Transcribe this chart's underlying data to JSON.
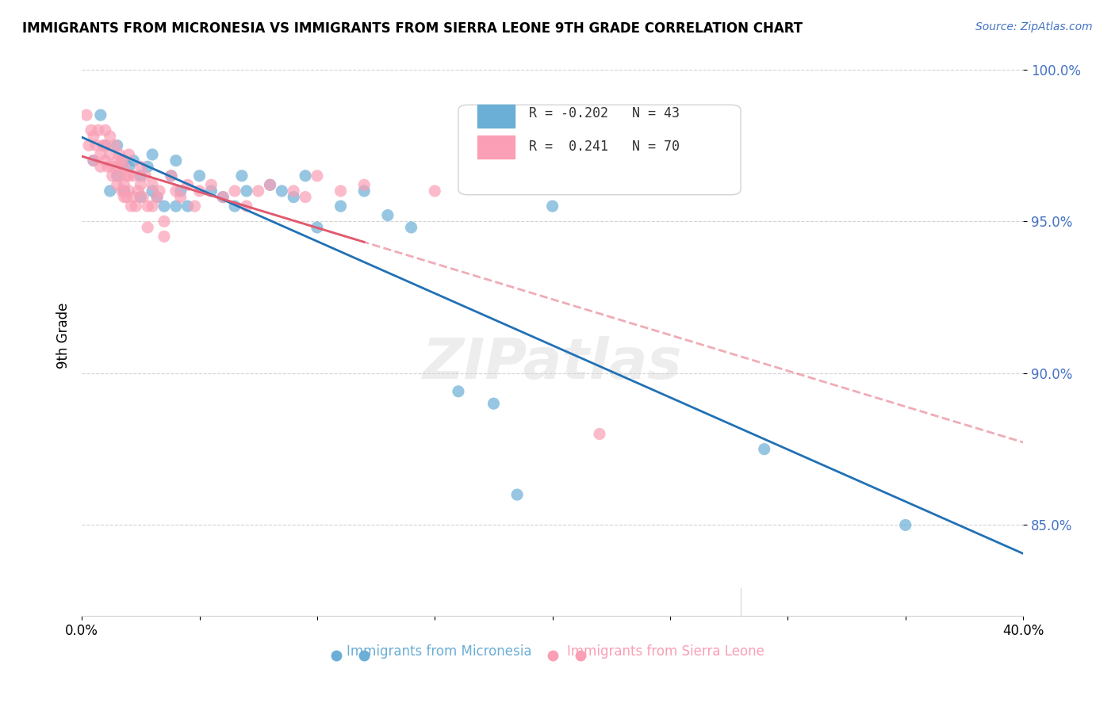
{
  "title": "IMMIGRANTS FROM MICRONESIA VS IMMIGRANTS FROM SIERRA LEONE 9TH GRADE CORRELATION CHART",
  "source": "Source: ZipAtlas.com",
  "xlabel_legend1": "Immigrants from Micronesia",
  "xlabel_legend2": "Immigrants from Sierra Leone",
  "ylabel": "9th Grade",
  "R_blue": -0.202,
  "N_blue": 43,
  "R_pink": 0.241,
  "N_pink": 70,
  "xlim": [
    0.0,
    0.4
  ],
  "ylim": [
    0.82,
    1.005
  ],
  "yticks": [
    0.85,
    0.9,
    0.95,
    1.0
  ],
  "ytick_labels": [
    "85.0%",
    "90.0%",
    "95.0%",
    "100.0%"
  ],
  "xticks": [
    0.0,
    0.05,
    0.1,
    0.15,
    0.2,
    0.25,
    0.3,
    0.35,
    0.4
  ],
  "xtick_labels": [
    "0.0%",
    "",
    "",
    "",
    "",
    "",
    "",
    "",
    "40.0%"
  ],
  "blue_color": "#6baed6",
  "pink_color": "#fa9fb5",
  "blue_line_color": "#2171b5",
  "pink_line_color": "#e05a6e",
  "watermark": "ZIPatlas",
  "blue_scatter_x": [
    0.005,
    0.008,
    0.01,
    0.012,
    0.015,
    0.015,
    0.018,
    0.018,
    0.02,
    0.022,
    0.025,
    0.025,
    0.028,
    0.03,
    0.03,
    0.032,
    0.035,
    0.038,
    0.04,
    0.04,
    0.042,
    0.045,
    0.05,
    0.055,
    0.06,
    0.065,
    0.068,
    0.07,
    0.08,
    0.085,
    0.09,
    0.095,
    0.1,
    0.11,
    0.12,
    0.13,
    0.14,
    0.16,
    0.175,
    0.185,
    0.2,
    0.29,
    0.35
  ],
  "blue_scatter_y": [
    0.97,
    0.985,
    0.975,
    0.96,
    0.975,
    0.965,
    0.97,
    0.96,
    0.968,
    0.97,
    0.965,
    0.958,
    0.968,
    0.972,
    0.96,
    0.958,
    0.955,
    0.965,
    0.97,
    0.955,
    0.96,
    0.955,
    0.965,
    0.96,
    0.958,
    0.955,
    0.965,
    0.96,
    0.962,
    0.96,
    0.958,
    0.965,
    0.948,
    0.955,
    0.96,
    0.952,
    0.948,
    0.894,
    0.89,
    0.86,
    0.955,
    0.875,
    0.85
  ],
  "pink_scatter_x": [
    0.002,
    0.003,
    0.004,
    0.005,
    0.005,
    0.006,
    0.007,
    0.008,
    0.008,
    0.009,
    0.01,
    0.01,
    0.01,
    0.011,
    0.012,
    0.012,
    0.013,
    0.013,
    0.014,
    0.015,
    0.015,
    0.015,
    0.016,
    0.016,
    0.017,
    0.017,
    0.018,
    0.018,
    0.018,
    0.019,
    0.019,
    0.02,
    0.02,
    0.02,
    0.021,
    0.022,
    0.022,
    0.023,
    0.024,
    0.025,
    0.025,
    0.026,
    0.027,
    0.028,
    0.028,
    0.03,
    0.03,
    0.032,
    0.033,
    0.035,
    0.035,
    0.038,
    0.04,
    0.042,
    0.045,
    0.048,
    0.05,
    0.055,
    0.06,
    0.065,
    0.07,
    0.075,
    0.08,
    0.09,
    0.095,
    0.1,
    0.11,
    0.12,
    0.15,
    0.22
  ],
  "pink_scatter_y": [
    0.985,
    0.975,
    0.98,
    0.978,
    0.97,
    0.975,
    0.98,
    0.972,
    0.968,
    0.975,
    0.98,
    0.975,
    0.97,
    0.968,
    0.978,
    0.972,
    0.968,
    0.965,
    0.975,
    0.97,
    0.968,
    0.962,
    0.972,
    0.965,
    0.97,
    0.96,
    0.968,
    0.962,
    0.958,
    0.965,
    0.958,
    0.972,
    0.965,
    0.96,
    0.955,
    0.965,
    0.958,
    0.955,
    0.96,
    0.968,
    0.962,
    0.958,
    0.965,
    0.955,
    0.948,
    0.962,
    0.955,
    0.958,
    0.96,
    0.95,
    0.945,
    0.965,
    0.96,
    0.958,
    0.962,
    0.955,
    0.96,
    0.962,
    0.958,
    0.96,
    0.955,
    0.96,
    0.962,
    0.96,
    0.958,
    0.965,
    0.96,
    0.962,
    0.96,
    0.88
  ]
}
